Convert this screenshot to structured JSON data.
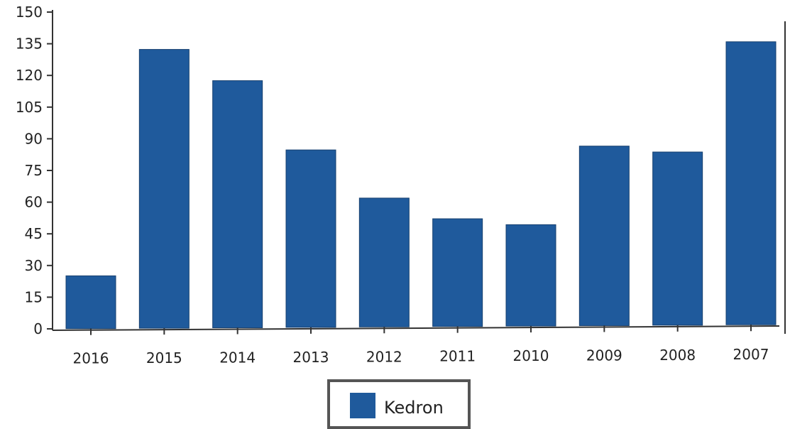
{
  "chart_data": {
    "type": "bar",
    "title": "",
    "xlabel": "",
    "ylabel": "",
    "categories": [
      "2016",
      "2015",
      "2014",
      "2013",
      "2012",
      "2011",
      "2010",
      "2009",
      "2008",
      "2007"
    ],
    "series": [
      {
        "name": "Kedron",
        "color": "#1f5a9c",
        "values": [
          25,
          132,
          117,
          84,
          61,
          51,
          48,
          85,
          82,
          134
        ]
      }
    ],
    "ylim": [
      0,
      150
    ],
    "yticks": [
      "0",
      "15",
      "30",
      "45",
      "60",
      "75",
      "90",
      "105",
      "120",
      "135",
      "150"
    ],
    "grid": false,
    "legend_position": "bottom-center"
  }
}
